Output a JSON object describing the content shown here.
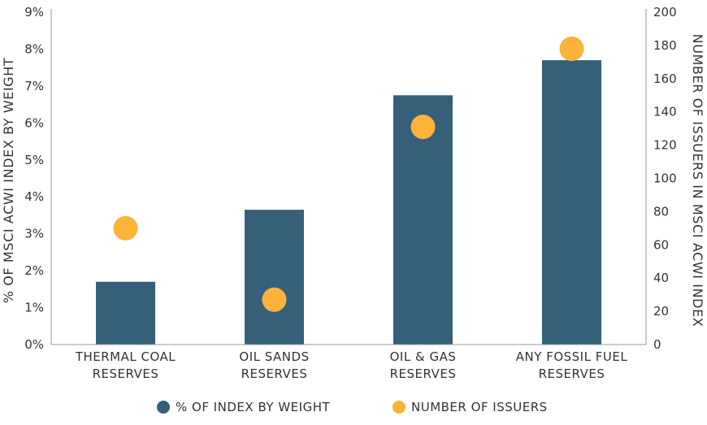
{
  "chart_data": {
    "type": "bar",
    "categories": [
      [
        "THERMAL COAL",
        "RESERVES"
      ],
      [
        "OIL SANDS",
        "RESERVES"
      ],
      [
        "OIL & GAS",
        "RESERVES"
      ],
      [
        "ANY FOSSIL FUEL",
        "RESERVES"
      ]
    ],
    "series": [
      {
        "name": "% OF INDEX BY WEIGHT",
        "type": "bar",
        "axis": "left",
        "values": [
          1.7,
          3.65,
          6.75,
          7.7
        ]
      },
      {
        "name": "NUMBER OF ISSUERS",
        "type": "scatter",
        "axis": "right",
        "values": [
          70,
          27,
          131,
          178
        ]
      }
    ],
    "y_left": {
      "label": "% OF MSCI ACWI INDEX BY WEIGHT",
      "ylim": [
        0,
        9
      ],
      "ticks": [
        "0%",
        "1%",
        "2%",
        "3%",
        "4%",
        "5%",
        "6%",
        "7%",
        "8%",
        "9%"
      ]
    },
    "y_right": {
      "label": "NUMBER OF ISSUERS IN MSCI ACWI INDEX",
      "ylim": [
        0,
        200
      ],
      "ticks": [
        "0",
        "20",
        "40",
        "60",
        "80",
        "100",
        "120",
        "140",
        "160",
        "180",
        "200"
      ]
    },
    "colors": {
      "bar": "#36607a",
      "dot": "#fbb33a",
      "axis": "#999999"
    },
    "grid": false,
    "legend_position": "bottom"
  }
}
